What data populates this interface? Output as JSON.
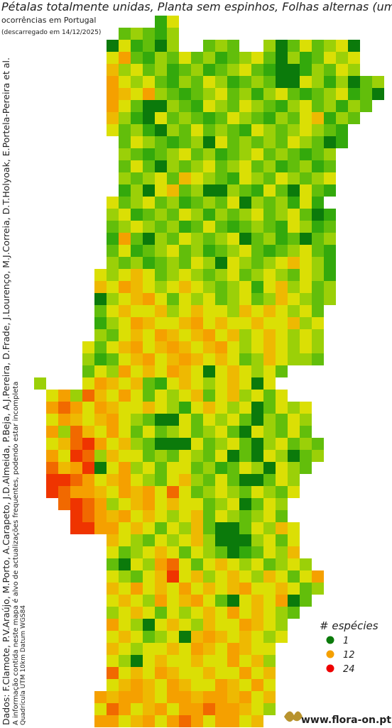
{
  "header": {
    "title": "Pétalas totalmente unidas, Planta sem espinhos, Folhas alternas (uma",
    "subtitle": "ocorrências em Portugal",
    "date": "(descarregado em 14/12/2025)"
  },
  "credits": [
    "Dados: F.Clamote, P.V.Araújo, M.Porto, A.Carapeto, J.D.Almeida, P.Beja, A.J.Pereira, D.Frade, J.Lourenço, M.J.Correia, D.T.Holyoak, E.Portela-Pereira et al.",
    "A informação contida neste mapa é alvo de actualizações frequentes, podendo estar incompleta",
    "Quadrícula UTM 10km Datum WGS84"
  ],
  "legend": {
    "title": "# espécies",
    "items": [
      {
        "value": 1,
        "color": "#0b7a0b"
      },
      {
        "value": 12,
        "color": "#f5a000"
      },
      {
        "value": 24,
        "color": "#ee0000"
      }
    ]
  },
  "footer": {
    "site": "www.flora-on.pt"
  },
  "map": {
    "rows": [
      [
        null,
        null,
        null,
        null,
        null,
        null,
        null,
        null,
        null,
        null,
        3,
        9
      ],
      [
        null,
        null,
        null,
        null,
        null,
        null,
        null,
        5,
        7,
        5,
        3,
        7
      ],
      [
        null,
        null,
        null,
        null,
        null,
        null,
        1,
        9,
        3,
        5,
        1,
        7,
        null,
        null,
        5,
        7,
        5,
        null,
        null,
        7,
        1,
        5,
        9,
        5,
        7,
        9,
        1
      ],
      [
        null,
        null,
        null,
        null,
        null,
        null,
        9,
        12,
        5,
        3,
        7,
        5,
        9,
        5,
        7,
        3,
        5,
        7,
        9,
        5,
        1,
        7,
        3,
        5,
        9,
        7,
        9
      ],
      [
        null,
        null,
        null,
        null,
        null,
        null,
        11,
        7,
        9,
        5,
        7,
        3,
        5,
        7,
        3,
        5,
        7,
        9,
        5,
        3,
        1,
        1,
        3,
        7,
        5,
        9,
        7
      ],
      [
        null,
        null,
        null,
        null,
        null,
        null,
        12,
        9,
        7,
        9,
        5,
        3,
        7,
        5,
        9,
        7,
        3,
        5,
        7,
        5,
        1,
        1,
        9,
        7,
        3,
        7,
        1,
        5,
        7
      ],
      [
        null,
        null,
        null,
        null,
        null,
        null,
        12,
        11,
        9,
        12,
        7,
        5,
        3,
        5,
        7,
        9,
        5,
        7,
        3,
        7,
        9,
        5,
        3,
        5,
        7,
        9,
        3,
        5,
        1
      ],
      [
        null,
        null,
        null,
        null,
        null,
        null,
        12,
        9,
        5,
        1,
        1,
        7,
        5,
        3,
        9,
        7,
        5,
        9,
        7,
        5,
        3,
        7,
        9,
        5,
        7,
        3,
        7,
        5
      ],
      [
        null,
        null,
        null,
        null,
        null,
        null,
        11,
        7,
        3,
        1,
        9,
        5,
        7,
        5,
        3,
        5,
        9,
        7,
        5,
        3,
        7,
        5,
        9,
        11,
        3,
        7,
        5
      ],
      [
        null,
        null,
        null,
        null,
        null,
        null,
        9,
        5,
        7,
        3,
        1,
        7,
        5,
        9,
        5,
        7,
        5,
        3,
        9,
        7,
        5,
        7,
        9,
        7,
        5,
        3
      ],
      [
        null,
        null,
        null,
        null,
        null,
        null,
        null,
        5,
        9,
        7,
        5,
        3,
        5,
        7,
        1,
        9,
        5,
        7,
        5,
        7,
        5,
        9,
        7,
        5,
        1,
        3
      ],
      [
        null,
        null,
        null,
        null,
        null,
        null,
        null,
        7,
        5,
        3,
        5,
        7,
        9,
        5,
        7,
        3,
        5,
        7,
        9,
        5,
        7,
        5,
        3,
        5,
        7
      ],
      [
        null,
        null,
        null,
        null,
        null,
        null,
        null,
        5,
        9,
        5,
        1,
        7,
        5,
        7,
        9,
        5,
        7,
        9,
        5,
        7,
        3,
        5,
        7,
        3,
        5
      ],
      [
        null,
        null,
        null,
        null,
        null,
        null,
        null,
        7,
        5,
        7,
        9,
        5,
        11,
        9,
        7,
        5,
        3,
        9,
        7,
        5,
        9,
        7,
        5,
        7,
        9
      ],
      [
        null,
        null,
        null,
        null,
        null,
        null,
        null,
        3,
        7,
        1,
        9,
        11,
        5,
        7,
        1,
        1,
        7,
        5,
        3,
        9,
        5,
        1,
        9,
        5,
        3
      ],
      [
        null,
        null,
        null,
        null,
        null,
        null,
        9,
        5,
        7,
        9,
        5,
        7,
        3,
        5,
        7,
        5,
        9,
        1,
        7,
        5,
        7,
        3,
        9,
        3
      ],
      [
        null,
        null,
        null,
        null,
        null,
        null,
        7,
        9,
        3,
        5,
        7,
        5,
        9,
        7,
        3,
        7,
        5,
        7,
        9,
        5,
        7,
        9,
        5,
        1,
        3
      ],
      [
        null,
        null,
        null,
        null,
        null,
        null,
        5,
        7,
        9,
        7,
        5,
        7,
        3,
        5,
        9,
        5,
        3,
        5,
        7,
        5,
        3,
        9,
        7,
        3,
        5
      ],
      [
        null,
        null,
        null,
        null,
        null,
        null,
        3,
        12,
        5,
        1,
        7,
        5,
        9,
        7,
        5,
        7,
        9,
        1,
        5,
        7,
        3,
        5,
        1,
        5,
        7
      ],
      [
        null,
        null,
        null,
        null,
        null,
        null,
        5,
        9,
        3,
        5,
        7,
        9,
        5,
        7,
        3,
        5,
        7,
        9,
        5,
        3,
        5,
        7,
        9,
        5,
        3
      ],
      [
        null,
        null,
        null,
        null,
        null,
        null,
        7,
        5,
        7,
        3,
        5,
        7,
        5,
        9,
        7,
        1,
        9,
        7,
        5,
        7,
        9,
        11,
        9,
        7,
        3
      ],
      [
        null,
        null,
        null,
        null,
        null,
        9,
        7,
        9,
        11,
        9,
        5,
        7,
        9,
        7,
        5,
        7,
        9,
        5,
        7,
        9,
        7,
        5,
        9,
        7,
        3
      ],
      [
        null,
        null,
        null,
        null,
        null,
        11,
        9,
        12,
        11,
        9,
        7,
        9,
        11,
        9,
        7,
        5,
        7,
        9,
        3,
        9,
        11,
        7,
        9,
        5,
        7
      ],
      [
        null,
        null,
        null,
        null,
        null,
        1,
        7,
        9,
        11,
        12,
        9,
        5,
        9,
        7,
        9,
        5,
        7,
        9,
        5,
        7,
        11,
        9,
        7,
        5,
        7
      ],
      [
        null,
        null,
        null,
        null,
        null,
        5,
        9,
        11,
        9,
        9,
        11,
        7,
        9,
        11,
        9,
        9,
        7,
        11,
        9,
        11,
        9,
        7,
        9,
        5
      ],
      [
        null,
        null,
        null,
        null,
        null,
        3,
        7,
        9,
        12,
        11,
        9,
        9,
        11,
        12,
        9,
        11,
        9,
        9,
        11,
        9,
        9,
        11,
        7,
        9
      ],
      [
        null,
        null,
        null,
        null,
        null,
        7,
        5,
        9,
        11,
        9,
        12,
        11,
        9,
        11,
        12,
        9,
        11,
        7,
        9,
        11,
        9,
        7,
        9,
        7
      ],
      [
        null,
        null,
        null,
        null,
        9,
        5,
        9,
        11,
        12,
        9,
        11,
        12,
        11,
        9,
        11,
        12,
        9,
        7,
        9,
        11,
        9,
        7,
        9,
        7
      ],
      [
        null,
        null,
        null,
        null,
        7,
        3,
        5,
        9,
        11,
        12,
        9,
        11,
        12,
        11,
        9,
        11,
        9,
        5,
        7,
        11,
        9,
        7,
        7,
        5
      ],
      [
        null,
        null,
        null,
        null,
        5,
        9,
        7,
        12,
        9,
        11,
        9,
        12,
        11,
        9,
        1,
        9,
        11,
        9,
        7,
        9,
        5
      ],
      [
        7,
        null,
        null,
        null,
        9,
        12,
        11,
        9,
        11,
        5,
        3,
        9,
        11,
        9,
        7,
        9,
        11,
        9,
        1,
        9
      ],
      [
        null,
        9,
        12,
        7,
        16,
        11,
        9,
        12,
        9,
        5,
        9,
        7,
        9,
        11,
        5,
        9,
        11,
        7,
        9,
        5,
        9
      ],
      [
        null,
        12,
        16,
        12,
        9,
        12,
        11,
        9,
        9,
        11,
        9,
        7,
        3,
        9,
        11,
        9,
        7,
        9,
        1,
        5,
        9,
        7,
        9
      ],
      [
        null,
        9,
        12,
        11,
        9,
        11,
        12,
        9,
        7,
        5,
        1,
        1,
        9,
        5,
        9,
        7,
        9,
        5,
        1,
        7,
        5,
        9,
        7
      ],
      [
        null,
        12,
        7,
        16,
        11,
        9,
        12,
        9,
        5,
        9,
        5,
        7,
        9,
        5,
        7,
        9,
        5,
        1,
        9,
        7,
        5,
        9,
        5
      ],
      [
        null,
        9,
        11,
        16,
        20,
        12,
        9,
        11,
        7,
        5,
        1,
        1,
        1,
        9,
        5,
        7,
        9,
        5,
        1,
        7,
        9,
        5,
        7,
        5
      ],
      [
        null,
        12,
        9,
        20,
        16,
        7,
        11,
        9,
        9,
        5,
        7,
        5,
        9,
        7,
        5,
        9,
        1,
        5,
        1,
        9,
        7,
        1,
        5,
        7
      ],
      [
        null,
        16,
        11,
        12,
        20,
        1,
        9,
        12,
        7,
        9,
        5,
        9,
        9,
        5,
        7,
        3,
        5,
        9,
        7,
        1,
        9,
        7,
        5
      ],
      [
        null,
        20,
        20,
        16,
        12,
        9,
        11,
        12,
        9,
        7,
        5,
        9,
        11,
        7,
        5,
        9,
        5,
        1,
        1,
        5,
        9,
        7
      ],
      [
        null,
        20,
        16,
        12,
        12,
        11,
        9,
        12,
        11,
        12,
        9,
        16,
        9,
        5,
        7,
        9,
        7,
        5,
        9,
        7,
        5,
        9
      ],
      [
        null,
        null,
        16,
        20,
        16,
        12,
        7,
        9,
        11,
        12,
        9,
        11,
        9,
        9,
        5,
        7,
        9,
        1,
        5,
        9,
        7
      ],
      [
        null,
        null,
        null,
        20,
        16,
        12,
        11,
        12,
        9,
        11,
        9,
        7,
        9,
        11,
        5,
        9,
        7,
        5,
        7,
        9,
        5
      ],
      [
        null,
        null,
        null,
        20,
        20,
        12,
        12,
        9,
        11,
        9,
        5,
        9,
        7,
        11,
        5,
        1,
        1,
        5,
        9,
        7,
        11,
        9
      ],
      [
        null,
        null,
        null,
        null,
        null,
        null,
        11,
        9,
        7,
        5,
        9,
        7,
        9,
        11,
        7,
        1,
        1,
        1,
        7,
        9,
        5,
        9
      ],
      [
        null,
        null,
        null,
        null,
        null,
        null,
        9,
        5,
        7,
        9,
        11,
        9,
        5,
        9,
        7,
        5,
        1,
        3,
        5,
        9,
        7,
        11
      ],
      [
        null,
        null,
        null,
        null,
        null,
        null,
        5,
        1,
        9,
        7,
        12,
        16,
        9,
        5,
        9,
        11,
        9,
        7,
        9,
        5,
        7,
        9,
        7
      ],
      [
        null,
        null,
        null,
        null,
        null,
        null,
        9,
        7,
        5,
        9,
        11,
        20,
        9,
        11,
        7,
        9,
        11,
        9,
        7,
        11,
        9,
        5,
        9,
        12
      ],
      [
        null,
        null,
        null,
        null,
        null,
        null,
        11,
        9,
        12,
        9,
        11,
        9,
        12,
        9,
        11,
        9,
        11,
        12,
        9,
        9,
        11,
        9,
        5,
        7
      ],
      [
        null,
        null,
        null,
        null,
        null,
        null,
        9,
        11,
        9,
        7,
        12,
        9,
        11,
        12,
        9,
        5,
        1,
        9,
        11,
        9,
        12,
        1,
        5
      ],
      [
        null,
        null,
        null,
        null,
        null,
        null,
        7,
        9,
        11,
        9,
        5,
        9,
        7,
        9,
        11,
        9,
        12,
        9,
        11,
        9,
        7,
        5
      ],
      [
        null,
        null,
        null,
        null,
        null,
        null,
        12,
        9,
        7,
        1,
        9,
        11,
        9,
        7,
        11,
        9,
        9,
        12,
        11,
        9,
        7
      ],
      [
        null,
        null,
        null,
        null,
        null,
        null,
        9,
        11,
        9,
        5,
        7,
        9,
        1,
        11,
        12,
        11,
        9,
        11,
        9,
        7,
        9
      ],
      [
        null,
        null,
        null,
        null,
        null,
        null,
        11,
        9,
        7,
        9,
        9,
        11,
        9,
        12,
        11,
        9,
        12,
        11,
        9,
        9
      ],
      [
        null,
        null,
        null,
        null,
        null,
        null,
        9,
        7,
        1,
        9,
        11,
        9,
        9,
        11,
        9,
        9,
        12,
        9,
        11,
        7
      ],
      [
        null,
        null,
        null,
        null,
        null,
        null,
        16,
        9,
        11,
        9,
        12,
        11,
        9,
        9,
        11,
        9,
        9,
        12,
        9,
        11
      ],
      [
        null,
        null,
        null,
        null,
        null,
        null,
        9,
        11,
        12,
        11,
        9,
        12,
        11,
        9,
        9,
        12,
        11,
        9,
        12,
        9
      ],
      [
        null,
        null,
        null,
        null,
        null,
        12,
        11,
        12,
        12,
        11,
        9,
        12,
        12,
        11,
        12,
        12,
        11,
        12,
        9,
        11
      ],
      [
        null,
        null,
        null,
        null,
        null,
        9,
        16,
        12,
        9,
        11,
        12,
        9,
        12,
        12,
        16,
        12,
        12,
        11,
        9,
        7
      ],
      [
        null,
        null,
        null,
        null,
        null,
        12,
        12,
        9,
        11,
        12,
        9,
        12,
        16,
        12,
        9,
        12,
        12,
        9,
        11
      ]
    ]
  }
}
